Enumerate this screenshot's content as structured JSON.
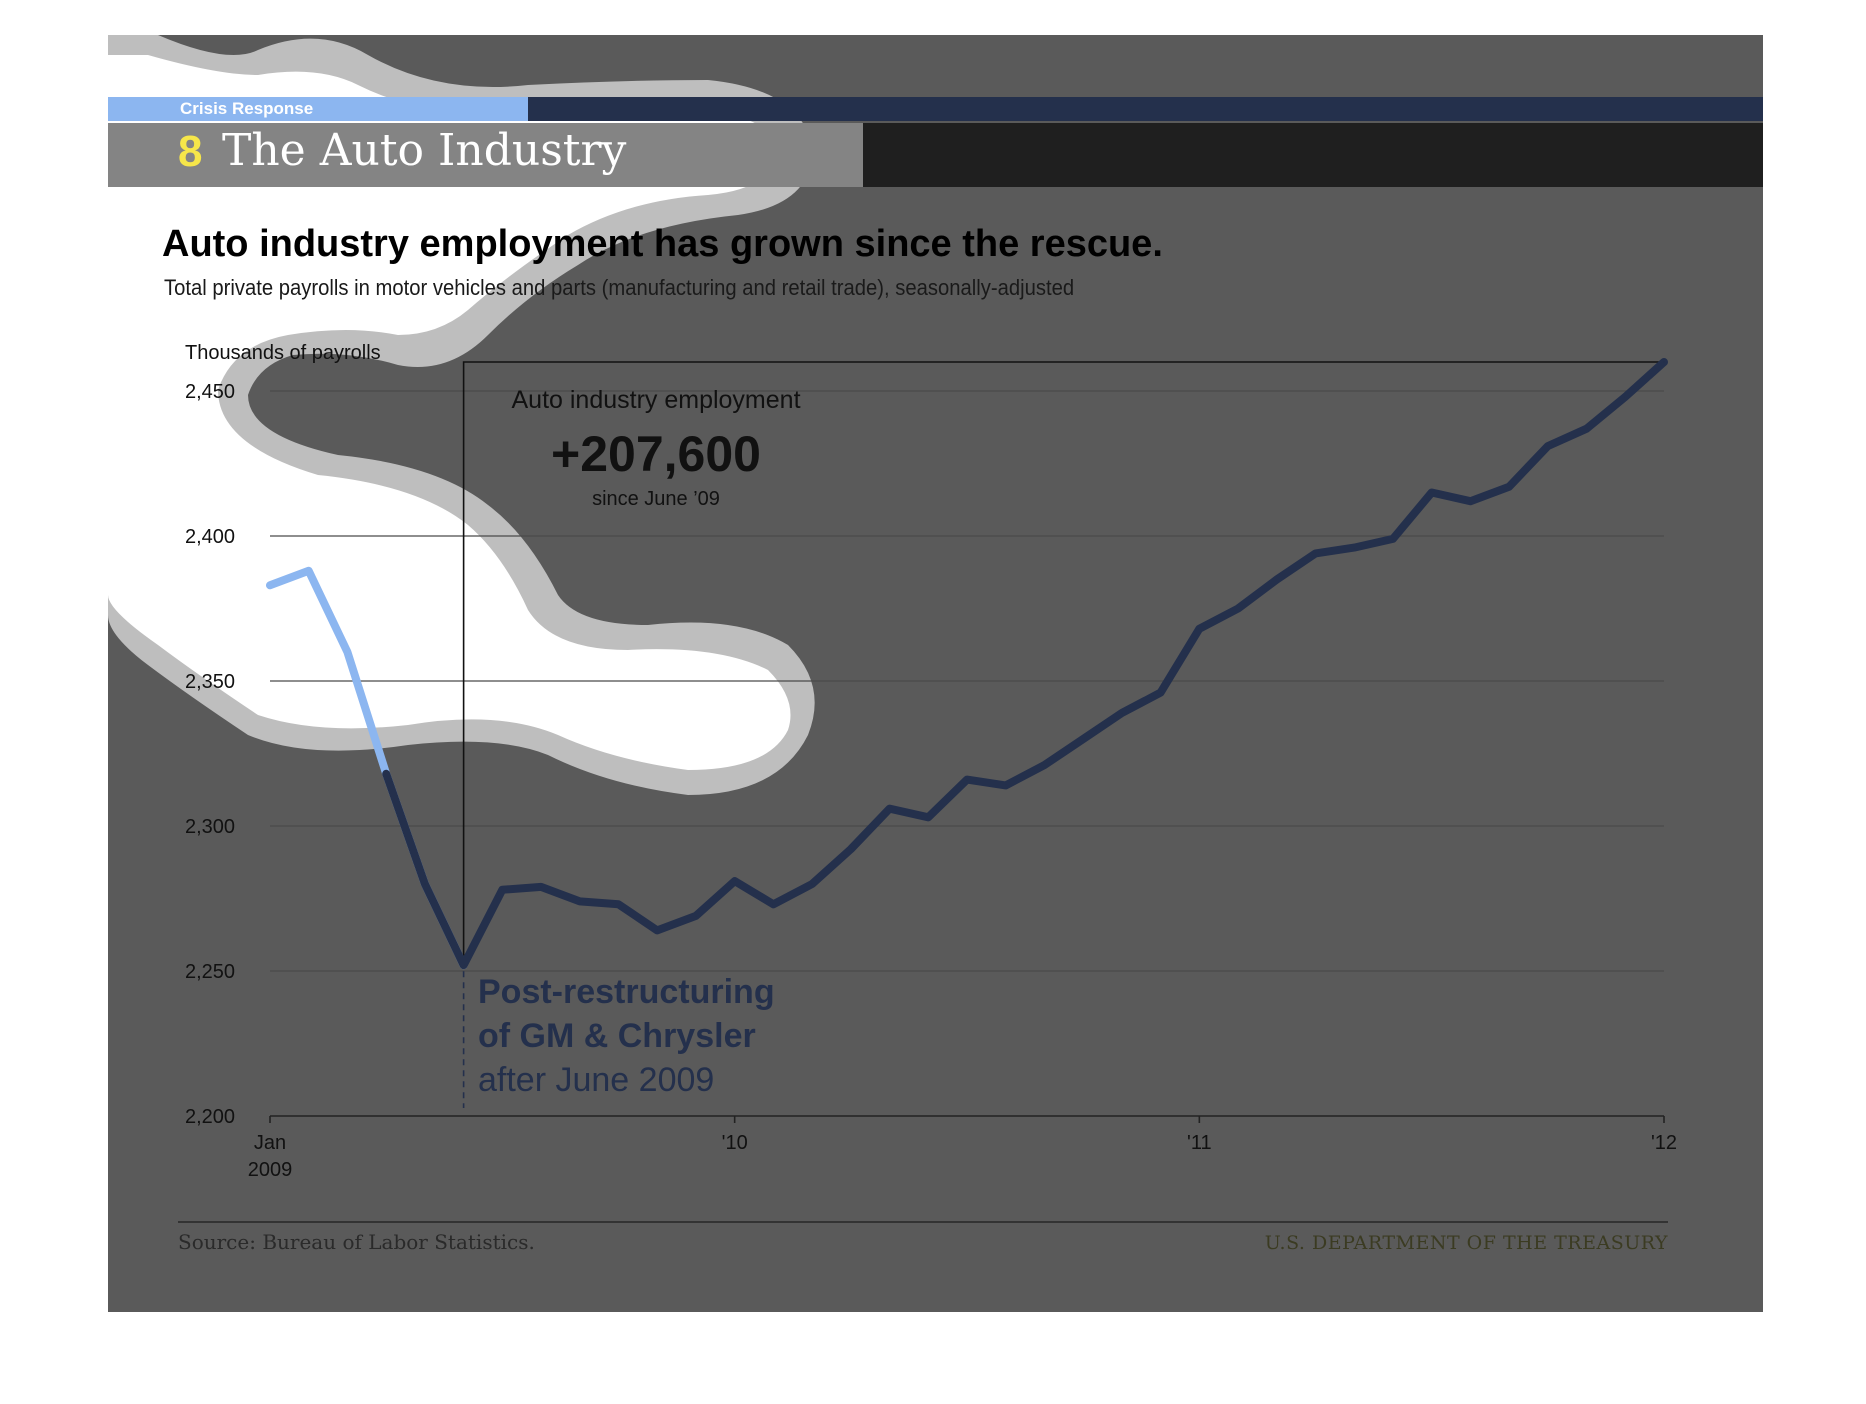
{
  "header": {
    "kicker": "Crisis Response",
    "section_number": "8",
    "section_title": "The Auto Industry"
  },
  "headline": "Auto industry employment has grown since the rescue.",
  "subhead": "Total private payrolls in motor vehicles and parts (manufacturing and retail trade), seasonally-adjusted",
  "callout": {
    "label": "Auto industry employment",
    "value": "+207,600",
    "since": "since June ’09"
  },
  "annotation": {
    "line1": "Post-restructuring",
    "line2": "of GM & Chrysler",
    "line3": "after June 2009"
  },
  "footer": {
    "source": "Source: Bureau of Labor Statistics.",
    "agency": "U.S. DEPARTMENT OF THE TREASURY"
  },
  "colors": {
    "pre_series": "#8cb6f0",
    "post_series": "#24304c",
    "slide_bg": "#5a5a5a",
    "accent_number": "#f6e64a"
  },
  "chart_data": {
    "type": "line",
    "ylabel": "Thousands of payrolls",
    "ylim": [
      2200,
      2460
    ],
    "yticks": [
      2200,
      2250,
      2300,
      2350,
      2400,
      2450
    ],
    "ytick_labels": [
      "2,200",
      "2,250",
      "2,300",
      "2,350",
      "2,400",
      "2,450"
    ],
    "xticks": [
      {
        "month": 0,
        "label": "Jan",
        "sublabel": "2009"
      },
      {
        "month": 12,
        "label": "'10",
        "sublabel": ""
      },
      {
        "month": 24,
        "label": "'11",
        "sublabel": ""
      },
      {
        "month": 36,
        "label": "'12",
        "sublabel": ""
      }
    ],
    "grid": true,
    "x": [
      "2009-01",
      "2009-02",
      "2009-03",
      "2009-04",
      "2009-05",
      "2009-06",
      "2009-07",
      "2009-08",
      "2009-09",
      "2009-10",
      "2009-11",
      "2009-12",
      "2010-01",
      "2010-02",
      "2010-03",
      "2010-04",
      "2010-05",
      "2010-06",
      "2010-07",
      "2010-08",
      "2010-09",
      "2010-10",
      "2010-11",
      "2010-12",
      "2011-01",
      "2011-02",
      "2011-03",
      "2011-04",
      "2011-05",
      "2011-06",
      "2011-07",
      "2011-08",
      "2011-09",
      "2011-10",
      "2011-11",
      "2011-12",
      "2012-01"
    ],
    "series": [
      {
        "segment": "pre-restructuring",
        "values": [
          2383,
          2388,
          2360,
          2318,
          2280,
          2252,
          null,
          null,
          null,
          null,
          null,
          null,
          null,
          null,
          null,
          null,
          null,
          null,
          null,
          null,
          null,
          null,
          null,
          null,
          null,
          null,
          null,
          null,
          null,
          null,
          null,
          null,
          null,
          null,
          null,
          null,
          null
        ]
      },
      {
        "segment": "post-restructuring",
        "values": [
          null,
          null,
          null,
          2318,
          2280,
          2252,
          2278,
          2279,
          2274,
          2273,
          2264,
          2269,
          2281,
          2273,
          2280,
          2292,
          2306,
          2303,
          2316,
          2314,
          2321,
          2330,
          2339,
          2346,
          2368,
          2375,
          2385,
          2394,
          2396,
          2399,
          2415,
          2412,
          2417,
          2431,
          2437,
          2448,
          2460
        ]
      }
    ],
    "restructuring_marker": "2009-06"
  }
}
